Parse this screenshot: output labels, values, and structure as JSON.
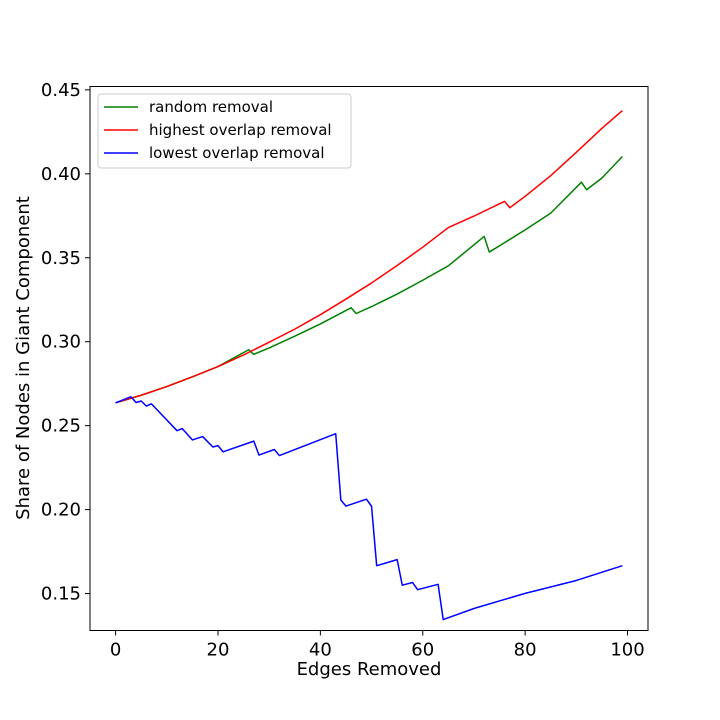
{
  "chart_data": {
    "type": "line",
    "xlabel": "Edges Removed",
    "ylabel": "Share of Nodes in Giant Component",
    "xlim": [
      -5,
      104
    ],
    "ylim": [
      0.128,
      0.452
    ],
    "xticks": [
      0,
      20,
      40,
      60,
      80,
      100
    ],
    "yticks": [
      0.15,
      0.2,
      0.25,
      0.3,
      0.35,
      0.4,
      0.45
    ],
    "grid": false,
    "legend_position": "upper left",
    "series": [
      {
        "name": "random removal",
        "color": "#008000",
        "points": [
          [
            0,
            0.2636
          ],
          [
            5,
            0.2681
          ],
          [
            10,
            0.2733
          ],
          [
            15,
            0.2791
          ],
          [
            20,
            0.2852
          ],
          [
            26,
            0.2952
          ],
          [
            27,
            0.2925
          ],
          [
            30,
            0.2963
          ],
          [
            35,
            0.3033
          ],
          [
            40,
            0.3106
          ],
          [
            46,
            0.3202
          ],
          [
            47,
            0.3168
          ],
          [
            50,
            0.3209
          ],
          [
            55,
            0.3284
          ],
          [
            60,
            0.3366
          ],
          [
            65,
            0.3452
          ],
          [
            72,
            0.3627
          ],
          [
            73,
            0.3534
          ],
          [
            76,
            0.359
          ],
          [
            80,
            0.3666
          ],
          [
            85,
            0.3766
          ],
          [
            91,
            0.395
          ],
          [
            92,
            0.3905
          ],
          [
            95,
            0.3975
          ],
          [
            99,
            0.4103
          ]
        ]
      },
      {
        "name": "highest overlap removal",
        "color": "#ff0000",
        "points": [
          [
            0,
            0.2636
          ],
          [
            5,
            0.2681
          ],
          [
            10,
            0.2733
          ],
          [
            15,
            0.2791
          ],
          [
            20,
            0.2852
          ],
          [
            25,
            0.2921
          ],
          [
            30,
            0.2997
          ],
          [
            35,
            0.3075
          ],
          [
            40,
            0.3161
          ],
          [
            45,
            0.3254
          ],
          [
            50,
            0.335
          ],
          [
            55,
            0.3454
          ],
          [
            60,
            0.3563
          ],
          [
            65,
            0.368
          ],
          [
            70,
            0.3748
          ],
          [
            76,
            0.3836
          ],
          [
            77,
            0.3798
          ],
          [
            80,
            0.3866
          ],
          [
            85,
            0.3989
          ],
          [
            90,
            0.4128
          ],
          [
            95,
            0.4271
          ],
          [
            99,
            0.4377
          ]
        ]
      },
      {
        "name": "lowest overlap removal",
        "color": "#0000ff",
        "points": [
          [
            0,
            0.2636
          ],
          [
            3,
            0.2672
          ],
          [
            4,
            0.2638
          ],
          [
            5,
            0.2647
          ],
          [
            6,
            0.2617
          ],
          [
            7,
            0.263
          ],
          [
            12,
            0.247
          ],
          [
            13,
            0.2483
          ],
          [
            15,
            0.2415
          ],
          [
            17,
            0.2435
          ],
          [
            19,
            0.2373
          ],
          [
            20,
            0.2381
          ],
          [
            21,
            0.2344
          ],
          [
            27,
            0.2408
          ],
          [
            28,
            0.2325
          ],
          [
            31,
            0.2358
          ],
          [
            32,
            0.2322
          ],
          [
            43,
            0.2452
          ],
          [
            44,
            0.2057
          ],
          [
            45,
            0.2021
          ],
          [
            49,
            0.2062
          ],
          [
            50,
            0.202
          ],
          [
            51,
            0.1666
          ],
          [
            55,
            0.1702
          ],
          [
            56,
            0.155
          ],
          [
            58,
            0.1566
          ],
          [
            59,
            0.1523
          ],
          [
            63,
            0.1555
          ],
          [
            64,
            0.1345
          ],
          [
            70,
            0.1411
          ],
          [
            80,
            0.1501
          ],
          [
            90,
            0.1578
          ],
          [
            99,
            0.1666
          ]
        ]
      }
    ]
  }
}
